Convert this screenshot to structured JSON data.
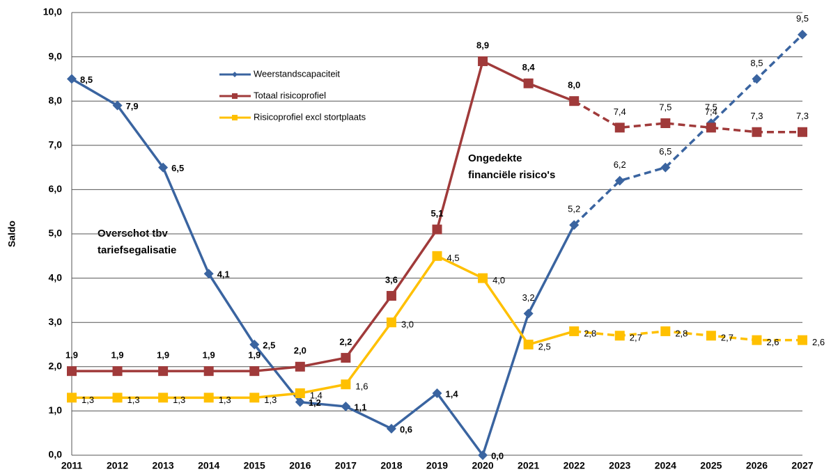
{
  "chart_data": {
    "type": "line",
    "y_label": "Saldo",
    "categories": [
      "2011",
      "2012",
      "2013",
      "2014",
      "2015",
      "2016",
      "2017",
      "2018",
      "2019",
      "2020",
      "2021",
      "2022",
      "2023",
      "2024",
      "2025",
      "2026",
      "2027"
    ],
    "ylim": [
      0,
      10
    ],
    "yticks": [
      {
        "value": 0,
        "label": "0,0"
      },
      {
        "value": 1,
        "label": "1,0"
      },
      {
        "value": 2,
        "label": "2,0"
      },
      {
        "value": 3,
        "label": "3,0"
      },
      {
        "value": 4,
        "label": "4,0"
      },
      {
        "value": 5,
        "label": "5,0"
      },
      {
        "value": 6,
        "label": "6,0"
      },
      {
        "value": 7,
        "label": "7,0"
      },
      {
        "value": 8,
        "label": "8,0"
      },
      {
        "value": 9,
        "label": "9,0"
      },
      {
        "value": 10,
        "label": "10,0"
      }
    ],
    "grid": true,
    "series": [
      {
        "name": "Weerstandscapaciteit",
        "color": "#3a64a0",
        "marker": "diamond",
        "values": [
          8.5,
          7.9,
          6.5,
          4.1,
          2.5,
          1.2,
          1.1,
          0.6,
          1.4,
          0.0,
          3.2,
          5.2,
          6.2,
          6.5,
          7.5,
          8.5,
          9.5
        ],
        "value_labels": [
          "8,5",
          "7,9",
          "6,5",
          "4,1",
          "2,5",
          "1,2",
          "1,1",
          "0,6",
          "1,4",
          "0,0",
          "3,2",
          "5,2",
          "6,2",
          "6,5",
          "7,5",
          "8,5",
          "9,5"
        ]
      },
      {
        "name": "Totaal risicoprofiel",
        "color": "#a03a3a",
        "marker": "square",
        "values": [
          1.9,
          1.9,
          1.9,
          1.9,
          1.9,
          2.0,
          2.2,
          3.6,
          5.1,
          8.9,
          8.4,
          8.0,
          7.4,
          7.5,
          7.4,
          7.3,
          7.3
        ],
        "value_labels": [
          "1,9",
          "1,9",
          "1,9",
          "1,9",
          "1,9",
          "2,0",
          "2,2",
          "3,6",
          "5,1",
          "8,9",
          "8,4",
          "8,0",
          "7,4",
          "7,5",
          "7,4",
          "7,3",
          "7,3"
        ]
      },
      {
        "name": "Risicoprofiel excl stortplaats",
        "color": "#ffc000",
        "marker": "square",
        "values": [
          1.3,
          1.3,
          1.3,
          1.3,
          1.3,
          1.4,
          1.6,
          3.0,
          4.5,
          4.0,
          2.5,
          2.8,
          2.7,
          2.8,
          2.7,
          2.6,
          2.6
        ],
        "value_labels": [
          "1,3",
          "1,3",
          "1,3",
          "1,3",
          "1,3",
          "1,4",
          "1,6",
          "3,0",
          "4,5",
          "4,0",
          "2,5",
          "2,8",
          "2,7",
          "2,8",
          "2,7",
          "2,6",
          "2,6"
        ]
      }
    ],
    "annotations": [
      [
        "Overschot tbv",
        "tariefsegalisatie"
      ],
      [
        "Ongedekte",
        "financiële risico's"
      ]
    ]
  }
}
